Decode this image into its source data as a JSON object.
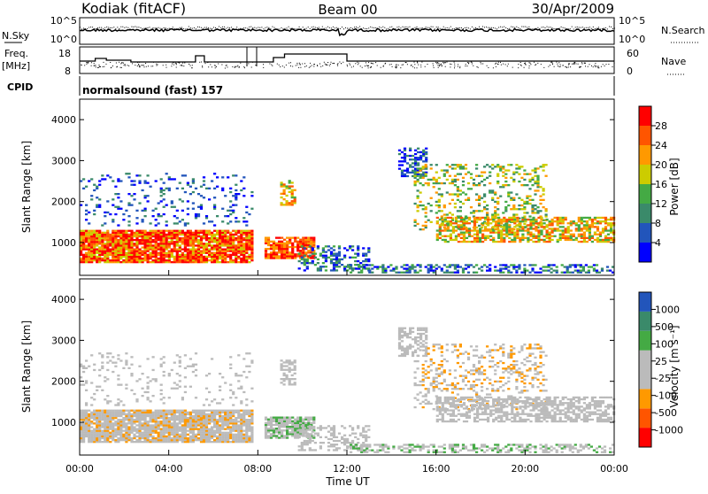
{
  "header": {
    "station": "Kodiak (fitACF)",
    "beam": "Beam 00",
    "date": "30/Apr/2009"
  },
  "noise_panel": {
    "left_label": "N.Sky",
    "right_label": "N.Search",
    "left_ticks": [
      "10^5",
      "10^0"
    ],
    "right_ticks": [
      "10^5",
      "10^0"
    ]
  },
  "freq_panel": {
    "left_label": "Freq.",
    "left_unit": "[MHz]",
    "left_ticks": [
      "18",
      "8"
    ],
    "right_label": "Nave",
    "right_ticks": [
      "60",
      "0"
    ]
  },
  "cpid": {
    "label": "CPID",
    "text": "normalsound (fast) 157"
  },
  "colors": {
    "power": [
      "#0000ff",
      "#2255bb",
      "#3a8a6a",
      "#44aa44",
      "#cccc00",
      "#ff9900",
      "#ff5500",
      "#ff0000"
    ],
    "velocity": [
      "#ff0000",
      "#ff5500",
      "#ff9900",
      "#bbbbbb",
      "#bbbbbb",
      "#44aa44",
      "#3a8a6a",
      "#2255bb"
    ]
  },
  "chart_data": [
    {
      "type": "heatmap",
      "name": "power",
      "ylabel": "Slant Range [km]",
      "yticks": [
        1000,
        2000,
        3000,
        4000
      ],
      "ylim": [
        200,
        4500
      ],
      "xlim": [
        0,
        24
      ],
      "colorbar": {
        "label": "Power [dB]",
        "ticks": [
          "28",
          "24",
          "20",
          "16",
          "12",
          "8",
          "4"
        ]
      }
    },
    {
      "type": "heatmap",
      "name": "velocity",
      "ylabel": "Slant Range [km]",
      "yticks": [
        1000,
        2000,
        3000,
        4000
      ],
      "ylim": [
        200,
        4500
      ],
      "xlim": [
        0,
        24
      ],
      "xticks": [
        "00:00",
        "04:00",
        "08:00",
        "12:00",
        "16:00",
        "20:00",
        "00:00"
      ],
      "xlabel": "Time UT",
      "colorbar": {
        "label": "Velocity [m s⁻¹]",
        "ticks": [
          "1000",
          "500",
          "100",
          "25",
          "-25",
          "-100",
          "-500",
          "-1000"
        ]
      }
    }
  ]
}
